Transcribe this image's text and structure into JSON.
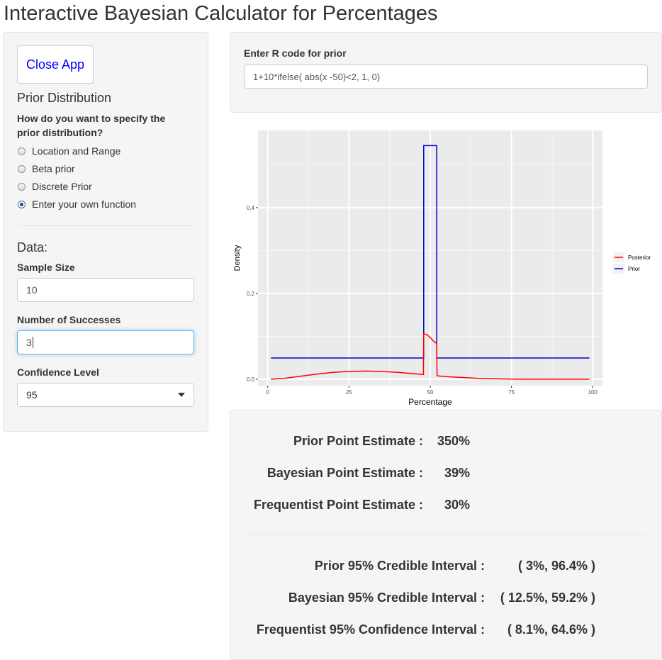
{
  "app_title": "Interactive Bayesian Calculator for Percentages",
  "sidebar": {
    "close_button": "Close App",
    "prior_heading": "Prior Distribution",
    "prior_question_line1": "How do you want to specify the",
    "prior_question_line2": "prior distribution?",
    "prior_options": [
      {
        "label": "Location and Range",
        "checked": false
      },
      {
        "label": "Beta prior",
        "checked": false
      },
      {
        "label": "Discrete Prior",
        "checked": false
      },
      {
        "label": "Enter your own function",
        "checked": true
      }
    ],
    "data_heading": "Data:",
    "sample_size_label": "Sample Size",
    "sample_size_value": "10",
    "successes_label": "Number of Successes",
    "successes_value": "3",
    "confidence_label": "Confidence Level",
    "confidence_value": "95"
  },
  "rcode": {
    "label": "Enter R code for prior",
    "value": "1+10*ifelse( abs(x -50)<2, 1, 0)"
  },
  "colors": {
    "posterior": "#ff0000",
    "prior": "#0000cc",
    "panel_bg": "#ebebeb",
    "accent_link": "#0000ff"
  },
  "chart_data": {
    "type": "line",
    "xlabel": "Percentage",
    "ylabel": "Density",
    "xlim": [
      -3,
      103
    ],
    "ylim": [
      -0.015,
      0.58
    ],
    "x_ticks": [
      0,
      25,
      50,
      75,
      100
    ],
    "y_ticks": [
      0.0,
      0.2,
      0.4
    ],
    "y_tick_labels": [
      "0.0",
      "0.2",
      "0.4"
    ],
    "grid": true,
    "legend_position": "right",
    "series": [
      {
        "name": "Posterior",
        "color": "#ff0000",
        "points": [
          [
            1,
            0.0
          ],
          [
            5,
            0.002
          ],
          [
            10,
            0.007
          ],
          [
            15,
            0.012
          ],
          [
            20,
            0.016
          ],
          [
            25,
            0.018
          ],
          [
            30,
            0.019
          ],
          [
            35,
            0.018
          ],
          [
            40,
            0.016
          ],
          [
            45,
            0.013
          ],
          [
            47.9,
            0.011
          ],
          [
            48,
            0.106
          ],
          [
            49,
            0.104
          ],
          [
            50,
            0.097
          ],
          [
            51,
            0.089
          ],
          [
            52,
            0.083
          ],
          [
            52.1,
            0.008
          ],
          [
            55,
            0.006
          ],
          [
            60,
            0.004
          ],
          [
            65,
            0.002
          ],
          [
            70,
            0.001
          ],
          [
            75,
            0.0004
          ],
          [
            80,
            0.0001
          ],
          [
            90,
            0.0
          ],
          [
            99,
            0.0
          ]
        ]
      },
      {
        "name": "Prior",
        "color": "#0000cc",
        "points": [
          [
            1,
            0.0495
          ],
          [
            48,
            0.0495
          ],
          [
            48,
            0.5446
          ],
          [
            52,
            0.5446
          ],
          [
            52,
            0.0495
          ],
          [
            99,
            0.0495
          ]
        ]
      }
    ]
  },
  "results": {
    "point_estimates": [
      {
        "label": "Prior Point Estimate :",
        "value": "350%"
      },
      {
        "label": "Bayesian Point Estimate :",
        "value": "39%"
      },
      {
        "label": "Frequentist Point Estimate :",
        "value": "30%"
      }
    ],
    "intervals": [
      {
        "label": "Prior 95% Credible Interval :",
        "value": "( 3%, 96.4% )"
      },
      {
        "label": "Bayesian 95% Credible Interval :",
        "value": "( 12.5%, 59.2% )"
      },
      {
        "label": "Frequentist 95% Confidence Interval :",
        "value": "( 8.1%, 64.6% )"
      }
    ]
  }
}
